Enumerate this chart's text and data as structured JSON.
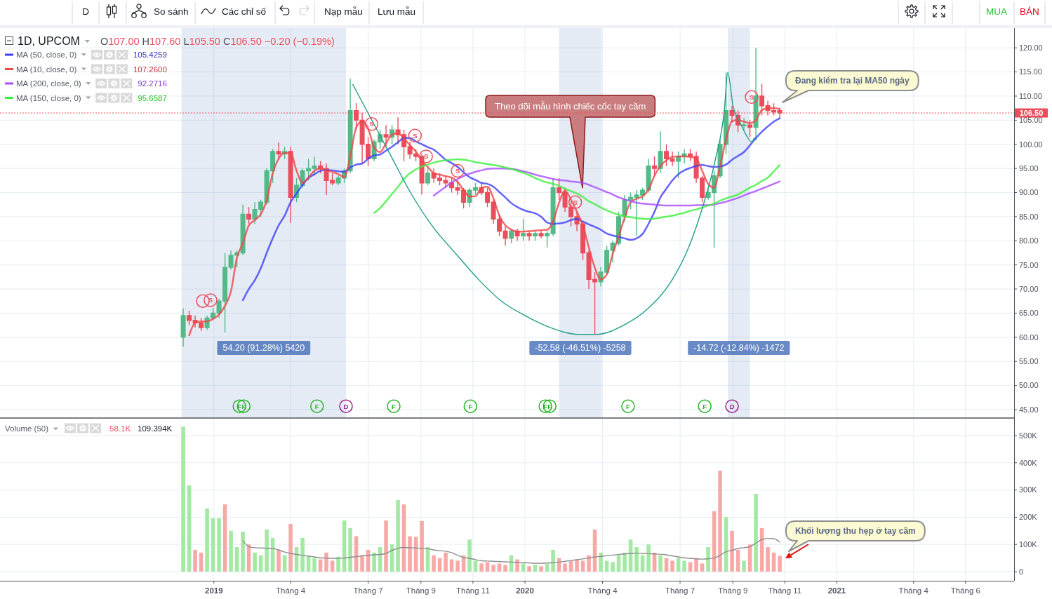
{
  "chart_data": [
    {
      "type": "other",
      "annotations": [
        "D",
        "So sánh",
        "Các chỉ số",
        "Nạp mẫu",
        "Lưu mẫu",
        "MUA",
        "BÁN"
      ],
      "colors": [
        "#131722",
        "#131722",
        "#131722",
        "#131722",
        "#131722",
        "#22c33a",
        "#e3001b"
      ]
    },
    {
      "type": "candlestick",
      "title": "1D, UPCOM",
      "subtitle": "O107.00 H107.60 L105.50 C106.50 −0.20 (−0.19%)",
      "x": [
        "2018-11-26",
        "2018-12-03",
        "2018-12-10",
        "2018-12-17",
        "2018-12-24",
        "2018-12-31",
        "2019-01-07",
        "2019-01-14",
        "2019-01-21",
        "2019-01-28",
        "2019-02-04",
        "2019-02-11",
        "2019-02-18",
        "2019-02-25",
        "2019-03-04",
        "2019-03-11",
        "2019-03-18",
        "2019-03-25",
        "2019-04-01",
        "2019-04-08",
        "2019-04-15",
        "2019-04-22",
        "2019-04-29",
        "2019-05-06",
        "2019-05-13",
        "2019-05-20",
        "2019-05-27",
        "2019-06-03",
        "2019-06-10",
        "2019-06-17",
        "2019-06-24",
        "2019-07-01",
        "2019-07-08",
        "2019-07-15",
        "2019-07-22",
        "2019-07-29",
        "2019-08-05",
        "2019-08-12",
        "2019-08-19",
        "2019-08-26",
        "2019-09-02",
        "2019-09-09",
        "2019-09-16",
        "2019-09-23",
        "2019-09-30",
        "2019-10-07",
        "2019-10-14",
        "2019-10-21",
        "2019-10-28",
        "2019-11-04",
        "2019-11-11",
        "2019-11-18",
        "2019-11-25",
        "2019-12-02",
        "2019-12-09",
        "2019-12-16",
        "2019-12-23",
        "2019-12-30",
        "2020-01-06",
        "2020-01-13",
        "2020-01-20",
        "2020-01-27",
        "2020-02-03",
        "2020-02-10",
        "2020-02-17",
        "2020-02-24",
        "2020-03-02",
        "2020-03-09",
        "2020-03-16",
        "2020-03-23",
        "2020-03-30",
        "2020-04-06",
        "2020-04-13",
        "2020-04-20",
        "2020-04-27",
        "2020-05-04",
        "2020-05-11",
        "2020-05-18",
        "2020-05-25",
        "2020-06-01",
        "2020-06-08",
        "2020-06-15",
        "2020-06-22",
        "2020-06-29",
        "2020-07-06",
        "2020-07-13",
        "2020-07-20",
        "2020-07-27",
        "2020-08-03",
        "2020-08-10",
        "2020-08-17",
        "2020-08-24",
        "2020-08-31",
        "2020-09-07",
        "2020-09-14",
        "2020-09-21",
        "2020-09-28",
        "2020-10-05",
        "2020-10-12",
        "2020-10-19",
        "2020-10-26"
      ],
      "ohlc": [
        [
          60,
          66,
          58,
          64.5
        ],
        [
          64.5,
          65.5,
          62.5,
          63.5
        ],
        [
          63.5,
          64.5,
          62,
          63
        ],
        [
          63,
          64,
          61.3,
          62
        ],
        [
          62,
          64.5,
          61.5,
          64
        ],
        [
          64,
          66,
          63.5,
          65
        ],
        [
          65,
          68,
          64,
          67.5
        ],
        [
          67.5,
          77.5,
          61,
          74.5
        ],
        [
          74.5,
          78,
          74,
          77
        ],
        [
          77,
          78,
          74.5,
          77.5
        ],
        [
          77.5,
          87.5,
          77,
          85.5
        ],
        [
          85.5,
          87,
          83.5,
          84.5
        ],
        [
          84.5,
          88,
          83.5,
          86.5
        ],
        [
          86.5,
          88.5,
          85,
          88
        ],
        [
          88,
          95,
          87.5,
          94.5
        ],
        [
          94.5,
          99,
          92,
          98.5
        ],
        [
          98.5,
          100.4,
          97,
          98
        ],
        [
          98,
          99.5,
          97,
          98.5
        ],
        [
          98.5,
          99.5,
          83.7,
          89
        ],
        [
          89,
          93,
          88,
          91.5
        ],
        [
          91.5,
          95,
          91,
          94.5
        ],
        [
          94.5,
          97,
          92.5,
          95
        ],
        [
          95,
          97.5,
          93.5,
          95.5
        ],
        [
          95.5,
          96.5,
          94,
          95
        ],
        [
          95,
          96,
          89.5,
          92.5
        ],
        [
          92.5,
          94,
          91.5,
          92
        ],
        [
          92,
          93.5,
          91.5,
          93
        ],
        [
          93,
          95,
          92,
          94.5
        ],
        [
          94.5,
          113.6,
          94,
          107
        ],
        [
          107,
          108.5,
          103,
          105
        ],
        [
          105,
          106.5,
          96,
          100
        ],
        [
          100,
          101.5,
          95.5,
          97
        ],
        [
          97,
          101,
          96.5,
          100.5
        ],
        [
          100.5,
          103,
          99,
          102
        ],
        [
          102,
          104,
          99.5,
          101.5
        ],
        [
          101.5,
          104,
          100,
          103
        ],
        [
          103,
          105.6,
          100,
          102
        ],
        [
          102,
          103,
          96.5,
          99.5
        ],
        [
          99.5,
          100.5,
          97,
          98
        ],
        [
          98,
          99,
          96.5,
          97.5
        ],
        [
          97.5,
          98,
          89.6,
          92
        ],
        [
          92,
          95,
          91.5,
          94
        ],
        [
          94,
          95,
          92,
          93
        ],
        [
          93,
          94,
          91.5,
          92.5
        ],
        [
          92.5,
          93.5,
          91,
          92
        ],
        [
          92,
          93,
          90,
          91
        ],
        [
          91,
          92.5,
          89.5,
          90.5
        ],
        [
          90.5,
          91,
          86.7,
          88
        ],
        [
          88,
          91,
          87,
          90.5
        ],
        [
          90.5,
          92,
          89.5,
          91
        ],
        [
          91,
          92,
          89.5,
          90
        ],
        [
          90,
          91,
          87,
          88
        ],
        [
          88,
          88.5,
          83.5,
          84.5
        ],
        [
          84.5,
          85.5,
          81,
          82
        ],
        [
          82,
          83,
          79,
          80.5
        ],
        [
          80.5,
          82.5,
          79.5,
          82
        ],
        [
          82,
          82.5,
          80,
          81
        ],
        [
          81,
          84.5,
          80,
          81.5
        ],
        [
          81.5,
          82,
          80,
          81
        ],
        [
          81,
          82,
          80,
          81.5
        ],
        [
          81.5,
          82,
          80.5,
          81
        ],
        [
          81,
          82,
          78.6,
          81.5
        ],
        [
          81.5,
          93,
          81,
          91
        ],
        [
          91,
          93,
          88.5,
          90
        ],
        [
          90,
          91,
          86,
          87
        ],
        [
          87,
          88,
          83,
          85
        ],
        [
          85,
          86,
          82,
          83.5
        ],
        [
          83.5,
          84,
          76,
          77.5
        ],
        [
          77.5,
          78,
          70,
          72
        ],
        [
          72,
          73.5,
          60.6,
          71.5
        ],
        [
          71.5,
          74.5,
          70.5,
          73.5
        ],
        [
          73.5,
          79,
          73,
          78
        ],
        [
          78,
          80,
          75.5,
          79.5
        ],
        [
          79.5,
          86,
          79,
          85
        ],
        [
          85,
          89.5,
          84,
          88.5
        ],
        [
          88.5,
          90,
          86.5,
          89
        ],
        [
          89,
          90.5,
          81,
          89.5
        ],
        [
          89.5,
          91,
          88.5,
          90.5
        ],
        [
          90.5,
          97,
          90,
          95.5
        ],
        [
          95.5,
          97.5,
          93.5,
          95
        ],
        [
          95,
          102.7,
          94,
          98.5
        ],
        [
          98.5,
          100,
          95.5,
          97
        ],
        [
          97,
          98.5,
          95.5,
          96.5
        ],
        [
          96.5,
          98.5,
          93,
          97.5
        ],
        [
          97.5,
          99,
          96,
          98
        ],
        [
          98,
          99,
          96.5,
          97.5
        ],
        [
          97.5,
          98.5,
          92,
          93
        ],
        [
          93,
          93.5,
          88,
          89
        ],
        [
          89,
          91,
          88.5,
          90
        ],
        [
          90,
          94.5,
          78.6,
          93.5
        ],
        [
          93.5,
          101,
          93,
          100
        ],
        [
          100,
          114.9,
          98,
          107
        ],
        [
          107,
          108,
          104.5,
          106
        ],
        [
          106,
          107,
          102.5,
          104
        ],
        [
          104,
          105.5,
          103,
          104
        ],
        [
          104,
          105,
          101.5,
          103.5
        ],
        [
          103.5,
          120,
          100.8,
          110
        ],
        [
          110,
          112.5,
          106,
          108
        ],
        [
          108,
          109,
          106,
          107
        ],
        [
          107,
          108.5,
          106,
          106.7
        ],
        [
          107,
          107.6,
          105.5,
          106.5
        ]
      ],
      "colors": [
        "#53b987",
        "#eb4d5c",
        "#eb4d5c",
        "#eb4d5c",
        "#53b987",
        "#53b987",
        "#53b987",
        "#53b987",
        "#53b987",
        "#53b987",
        "#53b987",
        "#eb4d5c",
        "#53b987",
        "#53b987",
        "#53b987",
        "#53b987",
        "#eb4d5c",
        "#53b987",
        "#eb4d5c",
        "#53b987",
        "#53b987",
        "#53b987",
        "#53b987",
        "#eb4d5c",
        "#eb4d5c",
        "#eb4d5c",
        "#53b987",
        "#53b987",
        "#53b987",
        "#eb4d5c",
        "#eb4d5c",
        "#eb4d5c",
        "#53b987",
        "#53b987",
        "#eb4d5c",
        "#53b987",
        "#eb4d5c",
        "#eb4d5c",
        "#eb4d5c",
        "#eb4d5c",
        "#eb4d5c",
        "#53b987",
        "#eb4d5c",
        "#eb4d5c",
        "#eb4d5c",
        "#eb4d5c",
        "#eb4d5c",
        "#eb4d5c",
        "#53b987",
        "#53b987",
        "#eb4d5c",
        "#eb4d5c",
        "#eb4d5c",
        "#eb4d5c",
        "#eb4d5c",
        "#53b987",
        "#eb4d5c",
        "#53b987",
        "#eb4d5c",
        "#53b987",
        "#eb4d5c",
        "#53b987",
        "#53b987",
        "#eb4d5c",
        "#eb4d5c",
        "#eb4d5c",
        "#eb4d5c",
        "#eb4d5c",
        "#eb4d5c",
        "#eb4d5c",
        "#53b987",
        "#53b987",
        "#53b987",
        "#53b987",
        "#53b987",
        "#53b987",
        "#53b987",
        "#53b987",
        "#53b987",
        "#eb4d5c",
        "#53b987",
        "#eb4d5c",
        "#eb4d5c",
        "#53b987",
        "#53b987",
        "#eb4d5c",
        "#eb4d5c",
        "#eb4d5c",
        "#53b987",
        "#53b987",
        "#53b987",
        "#53b987",
        "#eb4d5c",
        "#eb4d5c",
        "#53b987",
        "#eb4d5c",
        "#53b987",
        "#eb4d5c",
        "#eb4d5c",
        "#eb4d5c",
        "#eb4d5c"
      ],
      "series": [
        {
          "name": "MA (50, close, 0)",
          "type": "line",
          "color": "#3d3dfa",
          "values": [
            null,
            null,
            null,
            null,
            null,
            null,
            null,
            null,
            null,
            null,
            67.7,
            70,
            71.8,
            74.3,
            77.5,
            80.5,
            83.2,
            85.2,
            88,
            89.8,
            91.6,
            93,
            93.8,
            94.5,
            94.7,
            94.6,
            94.4,
            94.3,
            95.2,
            95.8,
            96,
            97,
            97.7,
            97.9,
            98.7,
            99.5,
            100.4,
            101.3,
            101.3,
            100.6,
            100,
            99.4,
            98.9,
            97.9,
            96.8,
            96.1,
            95.3,
            94.2,
            93.2,
            92.6,
            92,
            91.8,
            91.2,
            90.1,
            89,
            87.8,
            87,
            86.4,
            86,
            85.7,
            85,
            83.8,
            83.5,
            83.6,
            83.8,
            84.3,
            84.5,
            84,
            83.4,
            82.9,
            82.3,
            81.5,
            81.1,
            80.8,
            80.5,
            80.2,
            80.5,
            81.4,
            83.5,
            86,
            89,
            90.8,
            92.5,
            93.8,
            94.6,
            95.1,
            95.5,
            95.7,
            95.5,
            95.3,
            95.4,
            95.8,
            96.8,
            97.6,
            98.4,
            99.8,
            101.3,
            102.6,
            103.7,
            104.7,
            105.4
          ]
        },
        {
          "name": "MA (10, close, 0)",
          "type": "line",
          "color": "#f04545",
          "values": [
            null,
            60.4,
            63.0,
            63.3,
            63.3,
            63.8,
            64.7,
            66.5,
            69.5,
            76.5,
            79.5,
            83.2,
            84.3,
            85.5,
            88.5,
            94,
            97,
            98.2,
            98.2,
            94.5,
            92,
            93.2,
            94.5,
            95,
            94.6,
            94.3,
            93.8,
            93.2,
            97.5,
            103.5,
            104.8,
            103.3,
            99.4,
            98.4,
            100.2,
            102,
            102.3,
            101.2,
            99.8,
            98.5,
            96.5,
            95.3,
            94,
            93.7,
            93.4,
            93.1,
            92.2,
            90.5,
            89.2,
            89.2,
            91.0,
            91.2,
            88.8,
            85.2,
            83.2,
            82.3,
            81.9,
            81.9,
            82,
            82.1,
            82.2,
            82.3,
            84,
            87.9,
            90.4,
            88.5,
            86,
            83.2,
            78.6,
            74.4,
            72,
            73,
            77.3,
            80.9,
            84.8,
            88,
            88.7,
            89.2,
            90.6,
            93.5,
            95.5,
            96.7,
            97.4,
            97.5,
            97.5,
            97.4,
            97,
            94.5,
            91.8,
            91,
            95.5,
            101,
            104.8,
            105,
            104.7,
            104.4,
            105,
            107.1,
            107.5,
            107.5,
            107.3
          ]
        },
        {
          "name": "MA (200, close, 0)",
          "type": "line",
          "color": "#a94dfb",
          "values": [
            null,
            null,
            null,
            null,
            null,
            null,
            null,
            null,
            null,
            null,
            null,
            null,
            null,
            null,
            null,
            null,
            null,
            null,
            null,
            null,
            null,
            null,
            null,
            null,
            null,
            null,
            null,
            null,
            null,
            null,
            null,
            null,
            null,
            null,
            null,
            null,
            null,
            null,
            null,
            null,
            null,
            null,
            89.4,
            90.3,
            91.2,
            92.1,
            92.8,
            93.4,
            93.9,
            94.3,
            94.6,
            94.9,
            95,
            95,
            95,
            94.9,
            94.7,
            94.4,
            94.1,
            93.7,
            93.4,
            93.1,
            92.8,
            92.6,
            92.5,
            92.3,
            92.2,
            92,
            91.6,
            91.1,
            90.6,
            90.1,
            89.6,
            89,
            88.6,
            88.2,
            87.9,
            87.7,
            87.6,
            87.5,
            87.4,
            87.3,
            87.3,
            87.3,
            87.3,
            87.3,
            87.4,
            87.4,
            87.4,
            87.5,
            87.8,
            88.1,
            88.5,
            88.9,
            89.4,
            89.9,
            90.3,
            90.8,
            91.3,
            91.8,
            92.3
          ]
        },
        {
          "name": "MA (150, close, 0)",
          "type": "line",
          "color": "#3cef3c",
          "values": [
            null,
            null,
            null,
            null,
            null,
            null,
            null,
            null,
            null,
            null,
            null,
            null,
            null,
            null,
            null,
            null,
            null,
            null,
            null,
            null,
            null,
            null,
            null,
            null,
            null,
            null,
            null,
            null,
            null,
            null,
            null,
            null,
            85.8,
            86.8,
            88.2,
            89.7,
            91.2,
            92.8,
            94,
            94.8,
            95.4,
            95.8,
            96.2,
            96.5,
            96.7,
            96.8,
            96.9,
            96.8,
            96.6,
            96.3,
            96.1,
            95.9,
            95.7,
            95.5,
            95.2,
            94.9,
            94.5,
            94.1,
            93.6,
            93,
            92.5,
            92.1,
            91.8,
            91.4,
            90.8,
            90.3,
            89.8,
            89.1,
            88.2,
            87.6,
            86.9,
            86.3,
            85.8,
            85.4,
            85.1,
            84.9,
            84.7,
            84.6,
            84.5,
            84.6,
            84.8,
            85,
            85.2,
            85.5,
            85.8,
            86.2,
            86.5,
            86.9,
            87.3,
            87.7,
            88.3,
            88.8,
            89.2,
            89.6,
            90.3,
            91,
            91.6,
            92.4,
            93.1,
            94.4,
            95.7
          ]
        },
        {
          "type": "line",
          "color": "#1f9e89",
          "x": [
            "2019-06-13",
            "2019-07-28",
            "2019-08-21",
            "2019-09-15",
            "2019-10-13",
            "2019-11-09",
            "2019-12-05",
            "2020-01-01",
            "2020-01-31",
            "2020-03-04",
            "2020-03-25",
            "2020-04-27",
            "2020-05-24",
            "2020-06-21",
            "2020-07-11",
            "2020-07-27",
            "2020-08-11",
            "2020-08-22",
            "2020-08-26",
            "2020-09-01",
            "2020-09-09",
            "2020-09-17",
            "2020-09-23",
            "2020-09-26"
          ],
          "values": [
            112.4,
            97.5,
            89.6,
            82.9,
            77.1,
            71.7,
            67.4,
            64.5,
            62.0,
            60.6,
            60.6,
            62.6,
            65.9,
            71.7,
            78.6,
            86.7,
            96.5,
            107.1,
            114.9,
            108.1,
            104.7,
            101.8,
            100.5,
            101.3
          ]
        },
        {
          "type": "scatter",
          "color": "#eb4d5c",
          "marker": "circle",
          "x": [
            "2018-12-19",
            "2018-12-28",
            "2019-07-05",
            "2019-08-25",
            "2019-09-07",
            "2019-10-14",
            "2020-02-29",
            "2020-09-23"
          ],
          "values": [
            67.5,
            67.7,
            104.2,
            101.8,
            97.5,
            94.5,
            88.0,
            109.8
          ],
          "value_labels": [
            null,
            "S",
            "S",
            "S",
            "S",
            "S",
            "S",
            "S"
          ]
        },
        {
          "type": "scatter",
          "color": "#22b322",
          "marker": "circle",
          "x": [
            "2019-01-31",
            "2019-02-05",
            "2019-05-02",
            "2019-07-31",
            "2019-10-29",
            "2020-01-25",
            "2020-01-30",
            "2020-05-01",
            "2020-07-30"
          ],
          "values": [
            45.7,
            45.7,
            45.7,
            45.7,
            45.7,
            45.7,
            45.7,
            45.7,
            45.7
          ],
          "value_labels": [
            "F",
            "F",
            "F",
            "F",
            "F",
            "F",
            "F",
            "F",
            "F"
          ]
        },
        {
          "type": "scatter",
          "color": "#9c1f8c",
          "marker": "circle",
          "x": [
            "2019-06-05",
            "2020-08-31"
          ],
          "values": [
            45.7,
            45.7
          ],
          "value_labels": [
            "D",
            "D"
          ]
        }
      ],
      "xlim": [
        "2018-04-25",
        "2021-07-28"
      ],
      "xticks": [
        "2019-01-01",
        "2019-04-01",
        "2019-07-01",
        "2019-09-01",
        "2019-11-01",
        "2020-01-01",
        "2020-04-01",
        "2020-07-01",
        "2020-09-01",
        "2020-11-01",
        "2021-01-01",
        "2021-04-01",
        "2021-06-01"
      ],
      "ylim": [
        43.4,
        124.1
      ],
      "yticks": [
        {
          "value": 45,
          "label": "45.00"
        },
        {
          "value": 50,
          "label": "50.00"
        },
        {
          "value": 55,
          "label": "55.00"
        },
        {
          "value": 60,
          "label": "60.00"
        },
        {
          "value": 65,
          "label": "65.00"
        },
        {
          "value": 70,
          "label": "70.00"
        },
        {
          "value": 75,
          "label": "75.00"
        },
        {
          "value": 80,
          "label": "80.00"
        },
        {
          "value": 85,
          "label": "85.00"
        },
        {
          "value": 90,
          "label": "90.00"
        },
        {
          "value": 95,
          "label": "95.00"
        },
        {
          "value": 100,
          "label": "100.00"
        },
        {
          "value": 105,
          "label": "105.00"
        },
        {
          "value": 110,
          "label": "110.00"
        },
        {
          "value": 115,
          "label": "115.00"
        },
        {
          "value": 120,
          "label": "120.00"
        }
      ],
      "tick_labels": "y",
      "grid": true,
      "legend": "top left",
      "ref_lines": [
        {
          "axis": "y",
          "value": 106.5,
          "label": "106.50",
          "color": "#eb4d5c",
          "line_style": "dotted"
        }
      ],
      "bands": [
        {
          "axis": "x",
          "from": "2018-11-24",
          "to": "2019-06-05",
          "label": "54.20 (91.28%) 5420",
          "color": "#4770b8"
        },
        {
          "axis": "x",
          "from": "2020-02-10",
          "to": "2020-03-31",
          "label": "-52.58 (-46.51%) -5258",
          "color": "#4770b8"
        },
        {
          "axis": "x",
          "from": "2020-08-26",
          "to": "2020-09-21",
          "label": "-14.72 (-12.84%) -1472",
          "color": "#4770b8"
        }
      ],
      "annotations": [
        "Theo dõi mẫu hình chiếc cốc tay cầm",
        "Đang kiểm tra lại MA50 ngày",
        "105.4259",
        "107.2600",
        "92.2716",
        "95.6587"
      ]
    },
    {
      "type": "bar",
      "title": "Volume (50)",
      "x": [
        "2018-11-26",
        "2018-12-03",
        "2018-12-10",
        "2018-12-17",
        "2018-12-24",
        "2018-12-31",
        "2019-01-07",
        "2019-01-14",
        "2019-01-21",
        "2019-01-28",
        "2019-02-04",
        "2019-02-11",
        "2019-02-18",
        "2019-02-25",
        "2019-03-04",
        "2019-03-11",
        "2019-03-18",
        "2019-03-25",
        "2019-04-01",
        "2019-04-08",
        "2019-04-15",
        "2019-04-22",
        "2019-04-29",
        "2019-05-06",
        "2019-05-13",
        "2019-05-20",
        "2019-05-27",
        "2019-06-03",
        "2019-06-10",
        "2019-06-17",
        "2019-06-24",
        "2019-07-01",
        "2019-07-08",
        "2019-07-15",
        "2019-07-22",
        "2019-07-29",
        "2019-08-05",
        "2019-08-12",
        "2019-08-19",
        "2019-08-26",
        "2019-09-02",
        "2019-09-09",
        "2019-09-16",
        "2019-09-23",
        "2019-09-30",
        "2019-10-07",
        "2019-10-14",
        "2019-10-21",
        "2019-10-28",
        "2019-11-04",
        "2019-11-11",
        "2019-11-18",
        "2019-11-25",
        "2019-12-02",
        "2019-12-09",
        "2019-12-16",
        "2019-12-23",
        "2019-12-30",
        "2020-01-06",
        "2020-01-13",
        "2020-01-20",
        "2020-01-27",
        "2020-02-03",
        "2020-02-10",
        "2020-02-17",
        "2020-02-24",
        "2020-03-02",
        "2020-03-09",
        "2020-03-16",
        "2020-03-23",
        "2020-03-30",
        "2020-04-06",
        "2020-04-13",
        "2020-04-20",
        "2020-04-27",
        "2020-05-04",
        "2020-05-11",
        "2020-05-18",
        "2020-05-25",
        "2020-06-01",
        "2020-06-08",
        "2020-06-15",
        "2020-06-22",
        "2020-06-29",
        "2020-07-06",
        "2020-07-13",
        "2020-07-20",
        "2020-07-27",
        "2020-08-03",
        "2020-08-10",
        "2020-08-17",
        "2020-08-24",
        "2020-08-31",
        "2020-09-07",
        "2020-09-14",
        "2020-09-21",
        "2020-09-28",
        "2020-10-05",
        "2020-10-12",
        "2020-10-19",
        "2020-10-26"
      ],
      "series": [
        {
          "type": "bar",
          "values": [
            533,
            317,
            80,
            70,
            232,
            196,
            196,
            247,
            150,
            90,
            147,
            100,
            70,
            60,
            155,
            124,
            80,
            60,
            175,
            90,
            124,
            60,
            50,
            45,
            70,
            40,
            55,
            188,
            160,
            130,
            60,
            80,
            70,
            90,
            188,
            100,
            263,
            247,
            130,
            128,
            186,
            90,
            60,
            50,
            70,
            45,
            40,
            60,
            118,
            40,
            30,
            35,
            25,
            30,
            25,
            60,
            45,
            30,
            20,
            25,
            20,
            30,
            80,
            50,
            30,
            40,
            45,
            40,
            60,
            155,
            70,
            40,
            35,
            60,
            70,
            118,
            90,
            60,
            100,
            70,
            60,
            50,
            40,
            50,
            40,
            35,
            50,
            30,
            90,
            222,
            371,
            200,
            150,
            80,
            40,
            100,
            286,
            160,
            90,
            70,
            58
          ],
          "colors": [
            "#a3e9a4",
            "#a3e9a4",
            "#f7a9a7",
            "#f7a9a7",
            "#a3e9a4",
            "#a3e9a4",
            "#a3e9a4",
            "#f7a9a7",
            "#a3e9a4",
            "#a3e9a4",
            "#a3e9a4",
            "#f7a9a7",
            "#a3e9a4",
            "#a3e9a4",
            "#a3e9a4",
            "#a3e9a4",
            "#f7a9a7",
            "#a3e9a4",
            "#f7a9a7",
            "#a3e9a4",
            "#a3e9a4",
            "#a3e9a4",
            "#a3e9a4",
            "#f7a9a7",
            "#f7a9a7",
            "#f7a9a7",
            "#a3e9a4",
            "#a3e9a4",
            "#a3e9a4",
            "#f7a9a7",
            "#f7a9a7",
            "#f7a9a7",
            "#a3e9a4",
            "#a3e9a4",
            "#f7a9a7",
            "#a3e9a4",
            "#a3e9a4",
            "#f7a9a7",
            "#f7a9a7",
            "#f7a9a7",
            "#f7a9a7",
            "#a3e9a4",
            "#f7a9a7",
            "#f7a9a7",
            "#f7a9a7",
            "#f7a9a7",
            "#f7a9a7",
            "#f7a9a7",
            "#a3e9a4",
            "#a3e9a4",
            "#f7a9a7",
            "#f7a9a7",
            "#f7a9a7",
            "#f7a9a7",
            "#f7a9a7",
            "#a3e9a4",
            "#f7a9a7",
            "#a3e9a4",
            "#f7a9a7",
            "#a3e9a4",
            "#f7a9a7",
            "#a3e9a4",
            "#a3e9a4",
            "#f7a9a7",
            "#f7a9a7",
            "#f7a9a7",
            "#f7a9a7",
            "#f7a9a7",
            "#f7a9a7",
            "#f7a9a7",
            "#a3e9a4",
            "#a3e9a4",
            "#a3e9a4",
            "#a3e9a4",
            "#a3e9a4",
            "#a3e9a4",
            "#a3e9a4",
            "#a3e9a4",
            "#a3e9a4",
            "#f7a9a7",
            "#a3e9a4",
            "#f7a9a7",
            "#f7a9a7",
            "#a3e9a4",
            "#a3e9a4",
            "#f7a9a7",
            "#f7a9a7",
            "#f7a9a7",
            "#a3e9a4",
            "#f7a9a7",
            "#f7a9a7",
            "#a3e9a4",
            "#f7a9a7",
            "#f7a9a7",
            "#a3e9a4",
            "#f7a9a7",
            "#a3e9a4",
            "#f7a9a7",
            "#f7a9a7",
            "#f7a9a7",
            "#f7a9a7"
          ]
        },
        {
          "type": "line",
          "color": "#8e8e8e",
          "values": [
            null,
            null,
            null,
            null,
            null,
            null,
            null,
            null,
            null,
            null,
            113,
            92,
            88,
            87,
            86,
            85,
            80,
            72,
            67,
            63,
            60,
            57,
            54,
            51,
            50,
            49,
            49,
            50,
            53,
            55,
            58,
            60,
            62,
            63,
            67,
            78,
            86,
            89,
            88,
            87,
            86,
            84,
            80,
            77,
            75,
            70,
            60,
            52,
            49,
            44,
            40,
            39,
            38,
            37,
            36,
            35,
            34,
            33,
            32,
            31,
            31,
            32,
            33,
            35,
            38,
            41,
            44,
            47,
            50,
            54,
            56,
            59,
            61,
            63,
            65,
            67,
            68,
            67,
            66,
            65,
            64,
            62,
            58,
            54,
            51,
            49,
            47,
            46,
            47,
            50,
            60,
            73,
            78,
            85,
            88,
            92,
            105,
            118,
            122,
            121,
            109
          ]
        }
      ],
      "xlim": [
        "2018-04-25",
        "2021-07-28"
      ],
      "xticks": [
        {
          "value": "2019-01-01",
          "label": "2019"
        },
        {
          "value": "2019-04-01",
          "label": "Tháng 4"
        },
        {
          "value": "2019-07-01",
          "label": "Tháng 7"
        },
        {
          "value": "2019-09-01",
          "label": "Tháng 9"
        },
        {
          "value": "2019-11-01",
          "label": "Tháng 11"
        },
        {
          "value": "2020-01-01",
          "label": "2020"
        },
        {
          "value": "2020-04-01",
          "label": "Tháng 4"
        },
        {
          "value": "2020-07-01",
          "label": "Tháng 7"
        },
        {
          "value": "2020-09-01",
          "label": "Tháng 9"
        },
        {
          "value": "2020-11-01",
          "label": "Tháng 11"
        },
        {
          "value": "2021-01-01",
          "label": "2021"
        },
        {
          "value": "2021-04-01",
          "label": "Tháng 4"
        },
        {
          "value": "2021-06-01",
          "label": "Tháng 6"
        }
      ],
      "ylim": [
        -33.5,
        561.9
      ],
      "yticks": [
        0,
        {
          "value": 100,
          "label": "100K"
        },
        {
          "value": 200,
          "label": "200K"
        },
        {
          "value": 300,
          "label": "300K"
        },
        {
          "value": 400,
          "label": "400K"
        },
        {
          "value": 500,
          "label": "500K"
        }
      ],
      "grid": true,
      "annotations": [
        "58.1K",
        "109.394K",
        "Khối lượng thu hẹp ở tay cầm"
      ]
    }
  ]
}
